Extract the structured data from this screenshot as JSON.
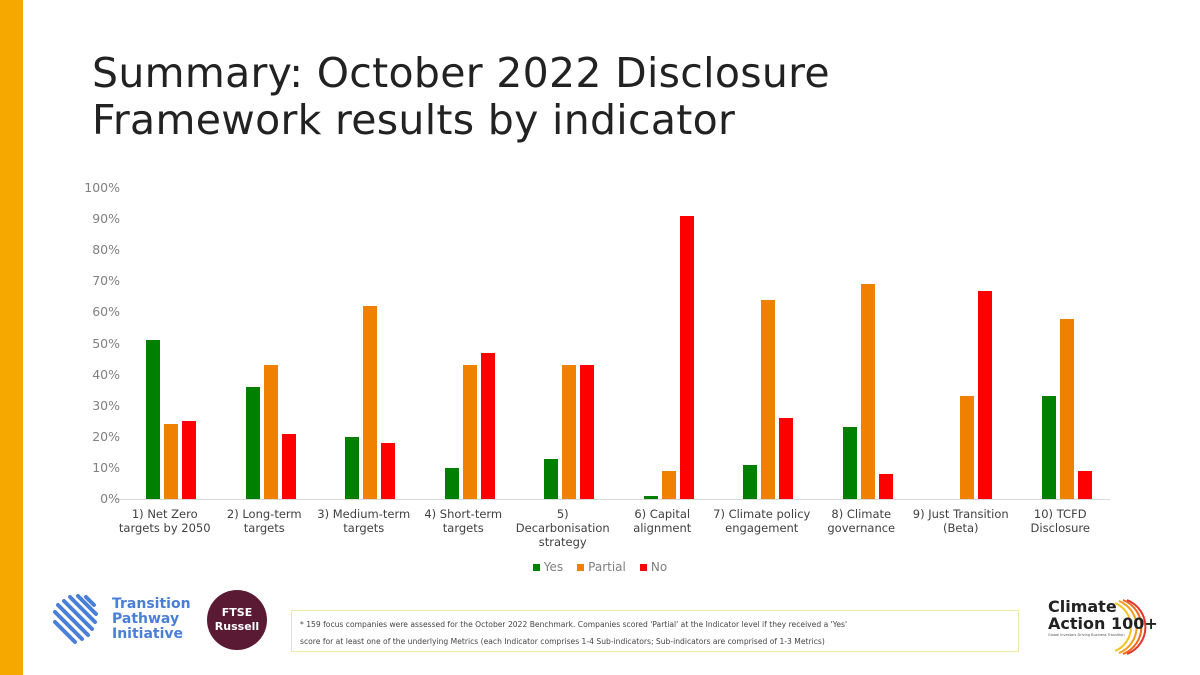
{
  "slide": {
    "title_line1": "Summary: October 2022 Disclosure",
    "title_line2": "Framework results by indicator",
    "accent_color": "#F7A800"
  },
  "chart_data": {
    "type": "bar",
    "title": "Summary: October 2022 Disclosure Framework results by indicator",
    "xlabel": "",
    "ylabel": "",
    "ylim": [
      0,
      100
    ],
    "yticks": [
      "0%",
      "10%",
      "20%",
      "30%",
      "40%",
      "50%",
      "60%",
      "70%",
      "80%",
      "90%",
      "100%"
    ],
    "grid": false,
    "legend_position": "bottom",
    "categories": [
      "1) Net Zero targets by 2050",
      "2) Long-term targets",
      "3) Medium-term targets",
      "4) Short-term targets",
      "5) Decarbonisation strategy",
      "6) Capital alignment",
      "7) Climate policy engagement",
      "8) Climate governance",
      "9) Just Transition (Beta)",
      "10) TCFD Disclosure"
    ],
    "category_lines": [
      [
        "1) Net Zero",
        "targets by 2050"
      ],
      [
        "2) Long-term",
        "targets"
      ],
      [
        "3) Medium-term",
        "targets"
      ],
      [
        "4) Short-term",
        "targets"
      ],
      [
        "5)",
        "Decarbonisation",
        "strategy"
      ],
      [
        "6) Capital",
        "alignment"
      ],
      [
        "7) Climate policy",
        "engagement"
      ],
      [
        "8) Climate",
        "governance"
      ],
      [
        "9) Just Transition",
        "(Beta)"
      ],
      [
        "10) TCFD",
        "Disclosure"
      ]
    ],
    "series": [
      {
        "name": "Yes",
        "color": "#008000",
        "values": [
          51,
          36,
          20,
          10,
          13,
          1,
          11,
          23,
          0,
          33
        ]
      },
      {
        "name": "Partial",
        "color": "#F08000",
        "values": [
          24,
          43,
          62,
          43,
          43,
          9,
          64,
          69,
          33,
          58
        ]
      },
      {
        "name": "No",
        "color": "#FF0000",
        "values": [
          25,
          21,
          18,
          47,
          43,
          91,
          26,
          8,
          67,
          9
        ]
      }
    ]
  },
  "footnote": {
    "line1": "* 159 focus companies were assessed for the October 2022 Benchmark. Companies scored 'Partial' at the Indicator level if they received a 'Yes'",
    "line2": "score for at least one of the underlying Metrics (each Indicator comprises 1-4 Sub-indicators; Sub-indicators are comprised of 1-3 Metrics)"
  },
  "logos": {
    "tpi": [
      "Transition",
      "Pathway",
      "Initiative"
    ],
    "ftse": [
      "FTSE",
      "Russell"
    ],
    "ca100": {
      "line1": "Climate",
      "line2": "Action 100+",
      "tagline": "Global Investors Driving Business Transition"
    }
  }
}
